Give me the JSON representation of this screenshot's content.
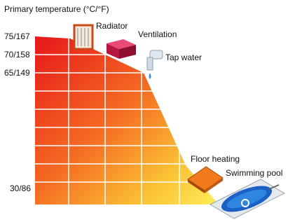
{
  "title": "Primary temperature (°C/°F)",
  "levels": [
    "75/167",
    "70/158",
    "65/149",
    "30/86"
  ],
  "applications": [
    "Radiator",
    "Ventilation",
    "Tap water",
    "Floor heating",
    "Swimming pool"
  ]
}
